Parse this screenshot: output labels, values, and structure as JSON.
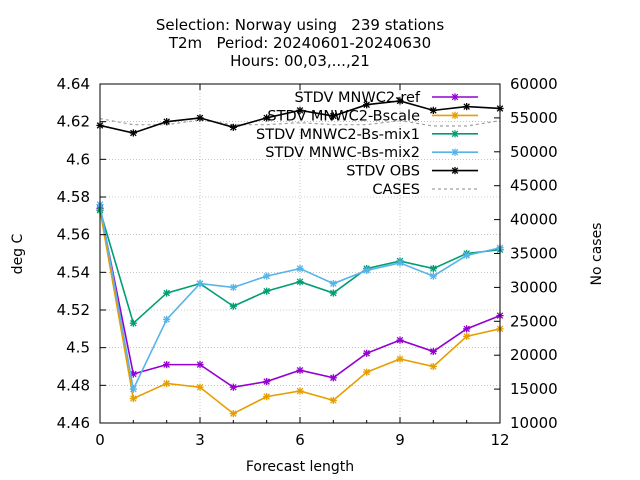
{
  "chart_data": {
    "type": "line",
    "title_lines": [
      "Selection: Norway using   239 stations",
      "T2m   Period: 20240601-20240630",
      "Hours: 00,03,...,21"
    ],
    "xlabel": "Forecast length",
    "ylabel": "deg C",
    "y2label": "No cases",
    "xlim": [
      0,
      12
    ],
    "ylim": [
      4.46,
      4.64
    ],
    "y2lim": [
      10000,
      60000
    ],
    "xticks": [
      0,
      3,
      6,
      9,
      12
    ],
    "yticks": [
      4.46,
      4.48,
      4.5,
      4.52,
      4.54,
      4.56,
      4.58,
      4.6,
      4.62,
      4.64
    ],
    "ytick_labels": [
      "4.46",
      "4.48",
      "4.5",
      "4.52",
      "4.54",
      "4.56",
      "4.58",
      "4.6",
      "4.62",
      "4.64"
    ],
    "y2ticks": [
      10000,
      15000,
      20000,
      25000,
      30000,
      35000,
      40000,
      45000,
      50000,
      55000,
      60000
    ],
    "grid": true,
    "legend_position": "top-right",
    "x": [
      0,
      1,
      2,
      3,
      4,
      5,
      6,
      7,
      8,
      9,
      10,
      11,
      12
    ],
    "series": [
      {
        "name": "STDV MNWC2-ref",
        "color": "#9400d3",
        "axis": "y",
        "values": [
          4.574,
          4.486,
          4.491,
          4.491,
          4.479,
          4.482,
          4.488,
          4.484,
          4.497,
          4.504,
          4.498,
          4.51,
          4.517
        ]
      },
      {
        "name": "STDV MNWC2-Bscale",
        "color": "#e69f00",
        "axis": "y",
        "values": [
          4.573,
          4.473,
          4.481,
          4.479,
          4.465,
          4.474,
          4.477,
          4.472,
          4.487,
          4.494,
          4.49,
          4.506,
          4.51
        ]
      },
      {
        "name": "STDV MNWC2-Bs-mix1",
        "color": "#009e73",
        "axis": "y",
        "values": [
          4.573,
          4.513,
          4.529,
          4.534,
          4.522,
          4.53,
          4.535,
          4.529,
          4.542,
          4.546,
          4.542,
          4.55,
          4.552
        ]
      },
      {
        "name": "STDV MNWC-Bs-mix2",
        "color": "#56b4e9",
        "axis": "y",
        "values": [
          4.576,
          4.478,
          4.515,
          4.534,
          4.532,
          4.538,
          4.542,
          4.534,
          4.541,
          4.545,
          4.538,
          4.549,
          4.553
        ]
      },
      {
        "name": "STDV OBS",
        "color": "#000000",
        "axis": "y",
        "values": [
          4.618,
          4.614,
          4.62,
          4.622,
          4.617,
          4.622,
          4.626,
          4.623,
          4.629,
          4.631,
          4.626,
          4.628,
          4.627
        ]
      },
      {
        "name": "CASES",
        "color": "#a0a0a0",
        "axis": "y2",
        "dashed": true,
        "values": [
          54900,
          54000,
          54000,
          54700,
          54000,
          54000,
          54300,
          54000,
          54000,
          54600,
          53800,
          53800,
          54600
        ]
      }
    ]
  }
}
